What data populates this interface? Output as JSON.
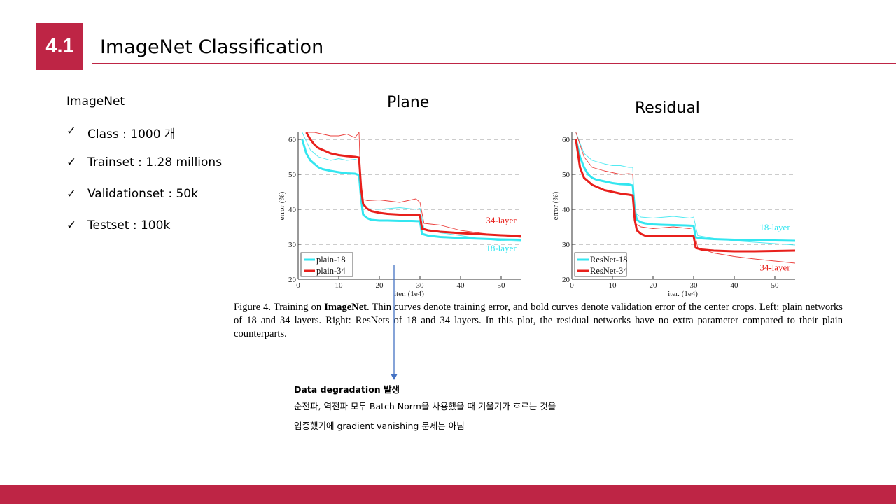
{
  "slide": {
    "number": "4.1",
    "title": "ImageNet  Classification",
    "accent_color": "#be2545"
  },
  "left": {
    "heading": "ImageNet",
    "bullets": [
      "Class : 1000 개",
      "Trainset : 1.28 millions",
      "Validationset : 50k",
      "Testset : 100k"
    ],
    "bullet_icon": "checkmark-icon"
  },
  "plot_titles": {
    "left": "Plane",
    "right": "Residual"
  },
  "figure": {
    "caption_prefix": "Figure 4. Training on ",
    "caption_bold": "ImageNet",
    "caption_rest": ". Thin curves denote training error, and bold curves denote validation error of the center crops. Left: plain networks of 18 and 34 layers. Right: ResNets of 18 and 34 layers. In this plot, the residual networks have no extra parameter compared to their plain counterparts."
  },
  "note": {
    "heading": "Data degradation 발생",
    "line1": "순전파, 역전파 모두 Batch Norm을 사용했을 때 기울기가 흐르는 것을",
    "line2": "입증했기에 gradient vanishing 문제는 아님"
  },
  "chart_data": [
    {
      "type": "line",
      "xlabel": "iter. (1e4)",
      "ylabel": "error (%)",
      "xlim": [
        0,
        55
      ],
      "ylim": [
        20,
        62
      ],
      "xticks": [
        0,
        10,
        20,
        30,
        40,
        50
      ],
      "yticks": [
        20,
        30,
        40,
        50,
        60
      ],
      "grid": "dashed horizontal at 30, 40, 50, 60",
      "legend_position": "bottom-left",
      "annotations": [
        {
          "text": "34-layer",
          "color": "#e8201c",
          "x": 50,
          "y": 36
        },
        {
          "text": "18-layer",
          "color": "#33e6f0",
          "x": 50,
          "y": 28
        }
      ],
      "series": [
        {
          "name": "plain-18",
          "color": "#33e6f0",
          "kind": "validation",
          "x": [
            1,
            2,
            3,
            4,
            5,
            6,
            8,
            10,
            12,
            14,
            15,
            15.5,
            16,
            17,
            18,
            20,
            22,
            25,
            28,
            30,
            30.5,
            32,
            35,
            40,
            45,
            50,
            55
          ],
          "y": [
            60,
            56,
            54,
            53,
            52,
            51.5,
            51,
            50.6,
            50.3,
            50.2,
            49.8,
            43,
            38.5,
            37.5,
            37,
            36.8,
            36.8,
            36.7,
            36.7,
            36.6,
            33,
            32.5,
            32.1,
            31.8,
            31.6,
            31.4,
            31.3
          ]
        },
        {
          "name": "plain-34",
          "color": "#e8201c",
          "kind": "validation",
          "x": [
            2,
            3,
            4,
            5,
            6,
            8,
            10,
            12,
            14,
            15,
            15.5,
            16,
            17,
            18,
            20,
            22,
            25,
            28,
            30,
            30.5,
            32,
            35,
            40,
            45,
            50,
            55
          ],
          "y": [
            62,
            60,
            58.5,
            57.5,
            57,
            56,
            55.5,
            55.2,
            55,
            54.8,
            46,
            41.5,
            40.2,
            39.5,
            39,
            38.7,
            38.5,
            38.4,
            38.3,
            34.5,
            34,
            33.6,
            33.2,
            32.9,
            32.6,
            32.4
          ]
        },
        {
          "name": "plain-18 train",
          "color": "#33e6f0",
          "kind": "training",
          "x": [
            1,
            3,
            5,
            8,
            10,
            12,
            14,
            15,
            15.5,
            17,
            20,
            25,
            29,
            30,
            31,
            35,
            40,
            45,
            50,
            55
          ],
          "y": [
            62,
            57,
            55,
            54,
            54.5,
            54,
            54.3,
            54,
            42,
            40.2,
            40,
            40.5,
            40,
            40.3,
            34.5,
            33.3,
            32.5,
            31.6,
            31,
            30.8
          ]
        },
        {
          "name": "plain-34 train",
          "color": "#e8201c",
          "kind": "training",
          "x": [
            2,
            4,
            6,
            8,
            10,
            12,
            14,
            15,
            15.5,
            17,
            20,
            25,
            29,
            30,
            31,
            35,
            40,
            45,
            50,
            55
          ],
          "y": [
            62,
            62,
            61.5,
            61,
            61,
            61.5,
            60.5,
            62,
            43,
            42.5,
            42.7,
            42,
            43,
            42,
            36,
            35.5,
            34,
            33.2,
            32.5,
            32
          ]
        }
      ]
    },
    {
      "type": "line",
      "xlabel": "iter. (1e4)",
      "ylabel": "error (%)",
      "xlim": [
        0,
        55
      ],
      "ylim": [
        20,
        62
      ],
      "xticks": [
        0,
        10,
        20,
        30,
        40,
        50
      ],
      "yticks": [
        20,
        30,
        40,
        50,
        60
      ],
      "grid": "dashed horizontal at 30, 40, 50, 60",
      "legend_position": "bottom-left",
      "annotations": [
        {
          "text": "18-layer",
          "color": "#33e6f0",
          "x": 50,
          "y": 34
        },
        {
          "text": "34-layer",
          "color": "#e8201c",
          "x": 50,
          "y": 22.5
        }
      ],
      "series": [
        {
          "name": "ResNet-18",
          "color": "#33e6f0",
          "kind": "validation",
          "x": [
            1,
            2,
            3,
            4,
            5,
            6,
            8,
            10,
            12,
            14,
            15,
            15.5,
            16,
            17,
            18,
            20,
            22,
            25,
            28,
            30,
            30.5,
            32,
            35,
            40,
            45,
            50,
            55
          ],
          "y": [
            60,
            55,
            52,
            50,
            49,
            48.5,
            48,
            47.5,
            47.2,
            47.1,
            46.8,
            40,
            37,
            36.3,
            36,
            35.7,
            35.6,
            35.5,
            35.4,
            35.3,
            32,
            31.7,
            31.5,
            31.3,
            31.2,
            31.1,
            31
          ]
        },
        {
          "name": "ResNet-34",
          "color": "#e8201c",
          "kind": "validation",
          "x": [
            1,
            2,
            3,
            4,
            5,
            6,
            8,
            10,
            12,
            14,
            15,
            15.5,
            16,
            17,
            18,
            20,
            22,
            25,
            28,
            30,
            30.5,
            32,
            35,
            40,
            45,
            50,
            55
          ],
          "y": [
            60,
            52,
            49,
            48,
            47,
            46.5,
            45.5,
            45,
            44.5,
            44.2,
            44,
            37,
            34,
            33,
            32.5,
            32.4,
            32.5,
            32.3,
            32.4,
            32.3,
            29,
            28.5,
            28.2,
            28,
            28,
            28.1,
            28.2
          ]
        },
        {
          "name": "ResNet-18 train",
          "color": "#33e6f0",
          "kind": "training",
          "x": [
            1,
            3,
            5,
            8,
            10,
            12,
            14,
            15,
            15.5,
            17,
            20,
            25,
            29,
            30,
            31,
            35,
            40,
            45,
            50,
            55
          ],
          "y": [
            62,
            56,
            54,
            53,
            52.5,
            52.5,
            52,
            52,
            39,
            37.8,
            37.5,
            38,
            37.5,
            37.8,
            32.5,
            31.7,
            31,
            30.6,
            30.2,
            29.8
          ]
        },
        {
          "name": "ResNet-34 train",
          "color": "#e8201c",
          "kind": "training",
          "x": [
            1,
            3,
            5,
            8,
            10,
            12,
            14,
            15,
            15.5,
            17,
            20,
            25,
            29,
            30,
            31,
            35,
            40,
            45,
            50,
            55
          ],
          "y": [
            62,
            55,
            52,
            51,
            50.5,
            50,
            50.2,
            50,
            36,
            35,
            34.5,
            35,
            34.5,
            34.8,
            29,
            27.5,
            26.5,
            25.8,
            25.2,
            24.6
          ]
        }
      ]
    }
  ]
}
